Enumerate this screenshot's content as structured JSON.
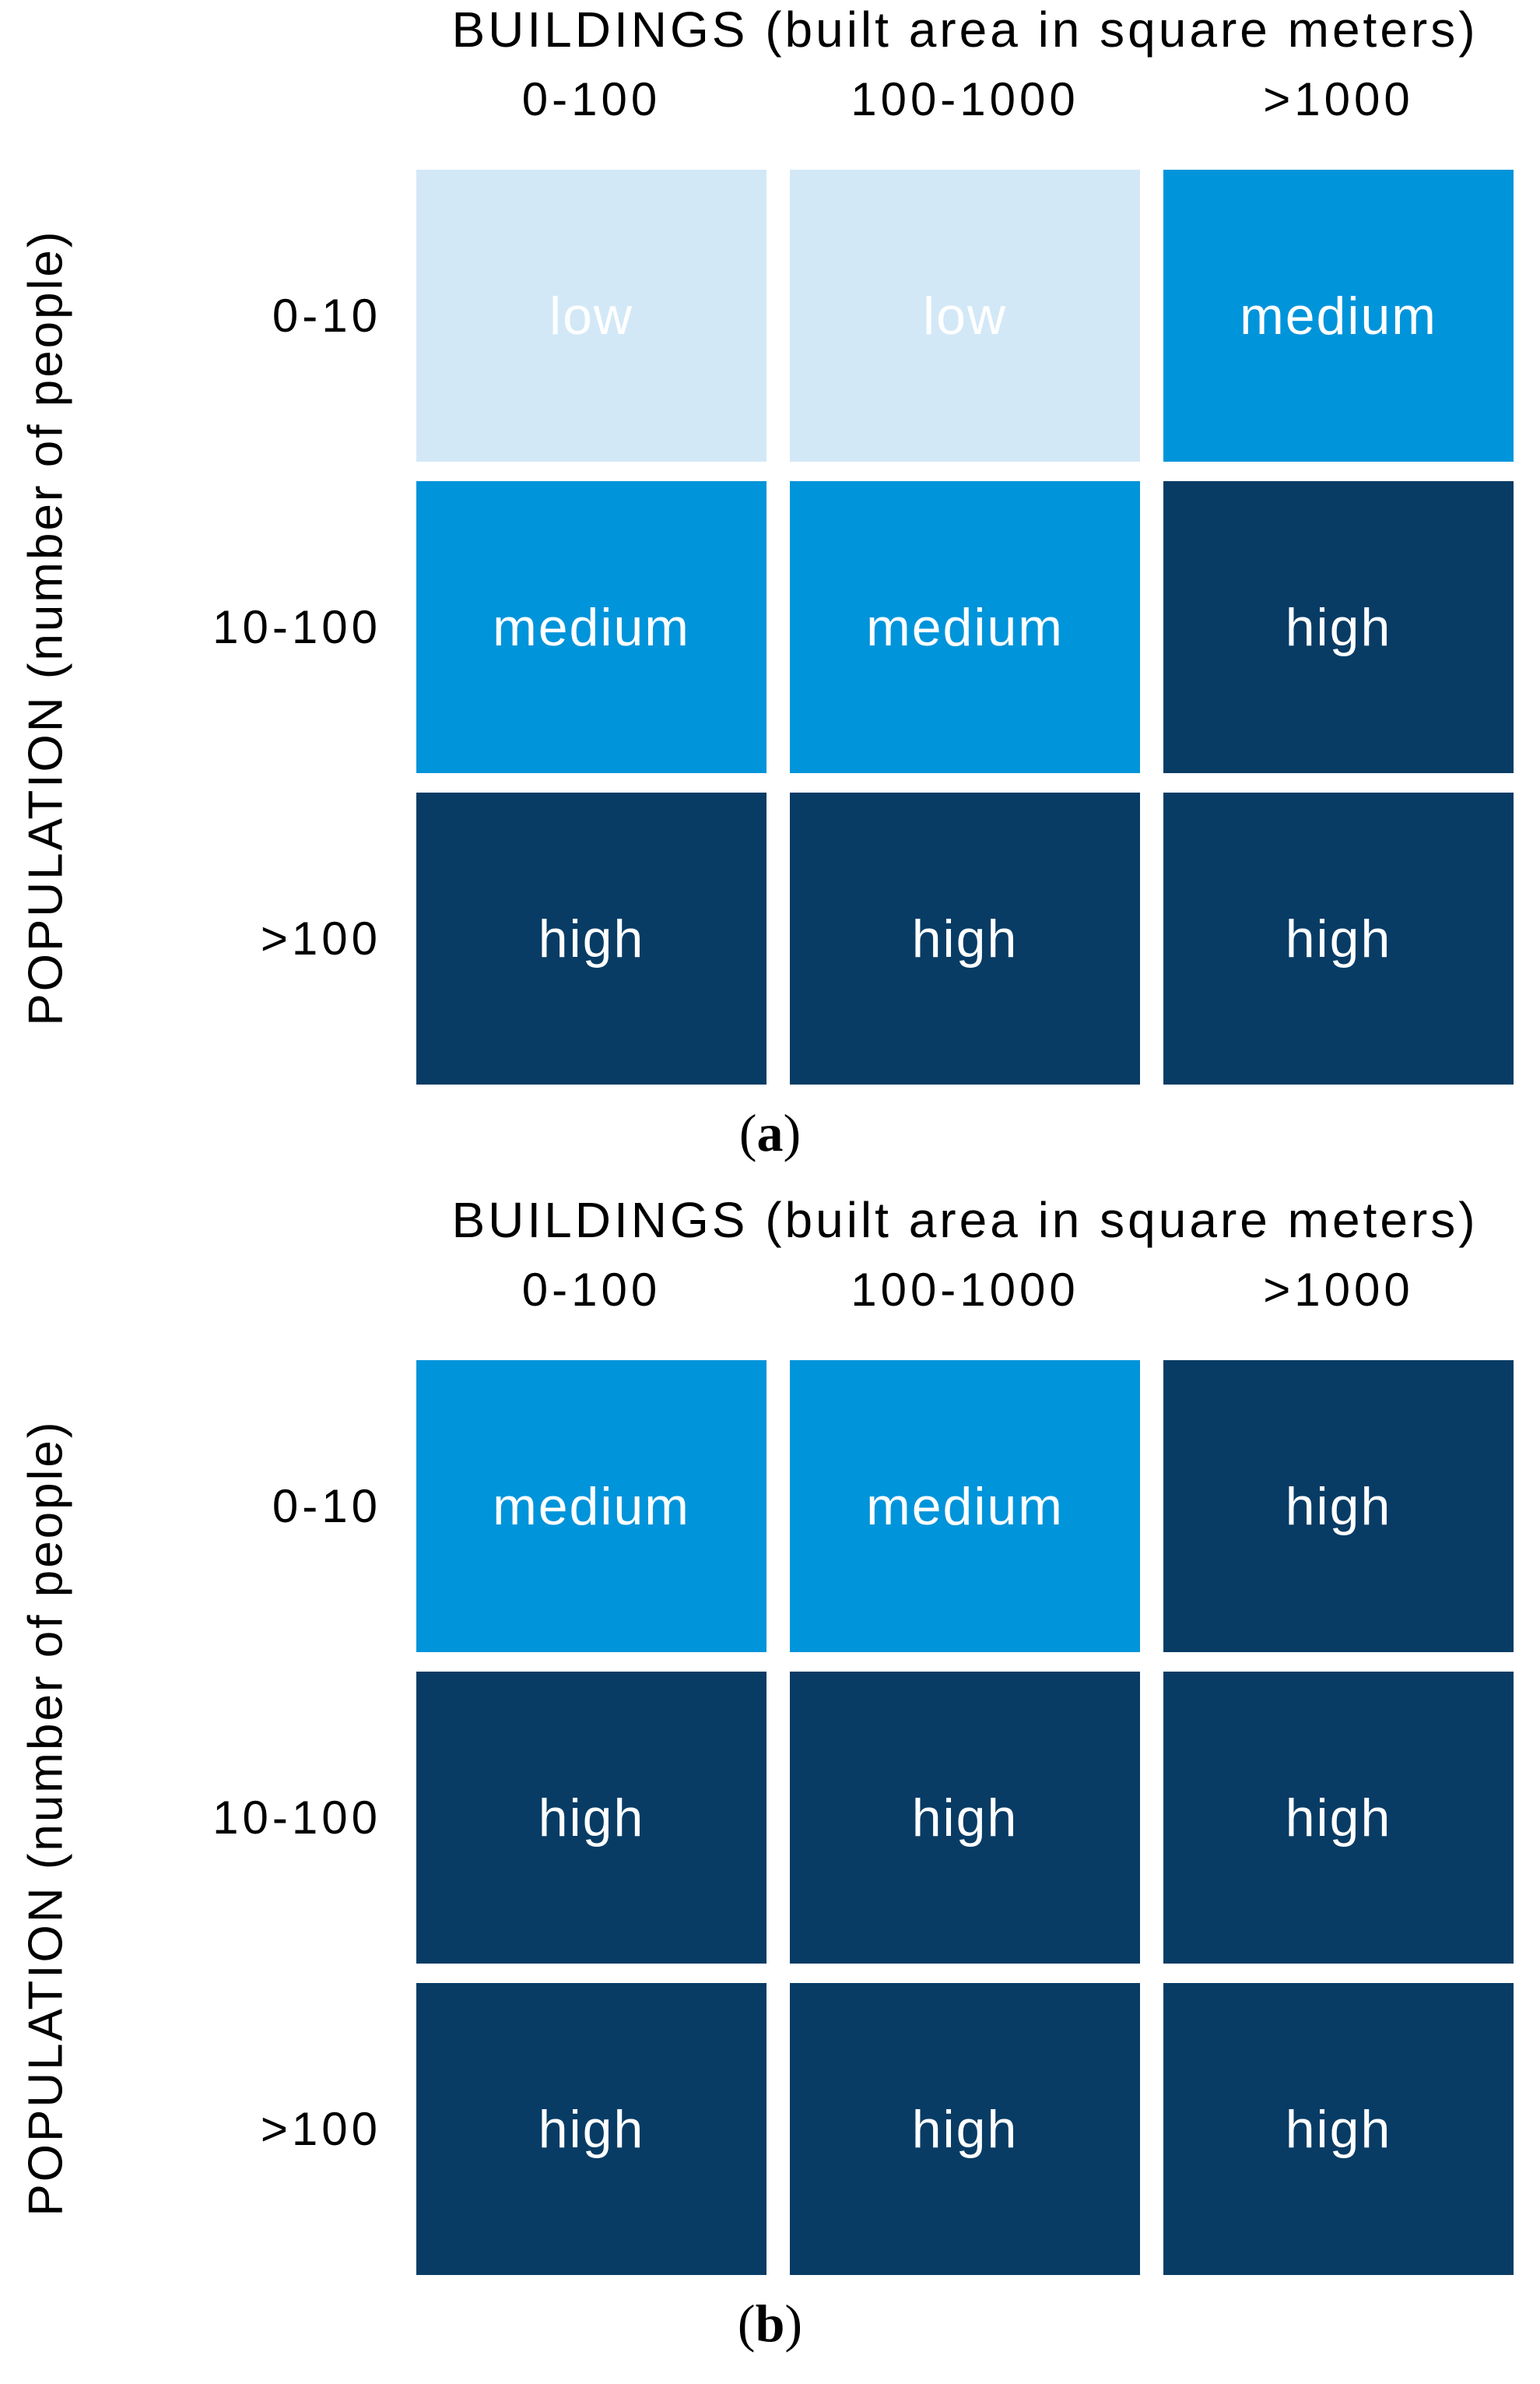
{
  "levels": {
    "low": "#d3e8f7",
    "medium": "#0094da",
    "high": "#083c65"
  },
  "cell_text_color": "#ffffff",
  "label_text_color": "#000000",
  "chart_data": [
    {
      "type": "heatmap",
      "panel": "a",
      "caption": {
        "prefix": "(",
        "letter": "a",
        "suffix": ")"
      },
      "x_title": "BUILDINGS (built area in square meters)",
      "y_title": "POPULATION (number of people)",
      "x_categories": [
        "0-100",
        "100-1000",
        ">1000"
      ],
      "y_categories": [
        "0-10",
        "10-100",
        ">100"
      ],
      "legend": "none",
      "rows": [
        {
          "cells": [
            {
              "value": "low",
              "color": "#d3e8f7"
            },
            {
              "value": "low",
              "color": "#d3e8f7"
            },
            {
              "value": "medium",
              "color": "#0094da"
            }
          ]
        },
        {
          "cells": [
            {
              "value": "medium",
              "color": "#0094da"
            },
            {
              "value": "medium",
              "color": "#0094da"
            },
            {
              "value": "high",
              "color": "#083c65"
            }
          ]
        },
        {
          "cells": [
            {
              "value": "high",
              "color": "#083c65"
            },
            {
              "value": "high",
              "color": "#083c65"
            },
            {
              "value": "high",
              "color": "#083c65"
            }
          ]
        }
      ]
    },
    {
      "type": "heatmap",
      "panel": "b",
      "caption": {
        "prefix": "(",
        "letter": "b",
        "suffix": ")"
      },
      "x_title": "BUILDINGS (built area in square meters)",
      "y_title": "POPULATION (number of people)",
      "x_categories": [
        "0-100",
        "100-1000",
        ">1000"
      ],
      "y_categories": [
        "0-10",
        "10-100",
        ">100"
      ],
      "legend": "none",
      "rows": [
        {
          "cells": [
            {
              "value": "medium",
              "color": "#0094da"
            },
            {
              "value": "medium",
              "color": "#0094da"
            },
            {
              "value": "high",
              "color": "#083c65"
            }
          ]
        },
        {
          "cells": [
            {
              "value": "high",
              "color": "#083c65"
            },
            {
              "value": "high",
              "color": "#083c65"
            },
            {
              "value": "high",
              "color": "#083c65"
            }
          ]
        },
        {
          "cells": [
            {
              "value": "high",
              "color": "#083c65"
            },
            {
              "value": "high",
              "color": "#083c65"
            },
            {
              "value": "high",
              "color": "#083c65"
            }
          ]
        }
      ]
    }
  ]
}
